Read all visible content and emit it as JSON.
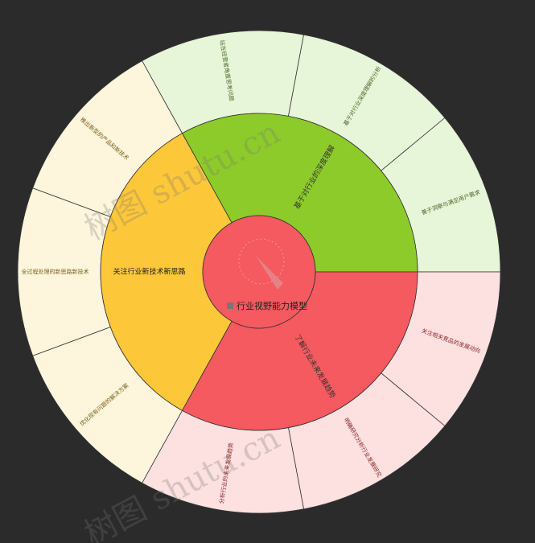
{
  "center": "行业视野能力模型",
  "branches": [
    {
      "label": "基于对行业的深度理解",
      "children": [
        "站在经营者角度思考问题",
        "基于对行业深度理解的分析",
        "善于洞察与满足用户需求"
      ]
    },
    {
      "label": "了解行业未来发展趋势",
      "children": [
        "关注相关竞品的发展动向",
        "明确研究分析行业发展研究",
        "分析行业的未来发展趋势"
      ]
    },
    {
      "label": "关注行业新技术新思路",
      "children": [
        "优化现有问题的解决方案",
        "全过程处理的新思路新技术",
        "推出新型的产品和新技术"
      ]
    }
  ],
  "watermarks": [
    "树图 shutu.cn",
    "树图 shutu.cn"
  ]
}
